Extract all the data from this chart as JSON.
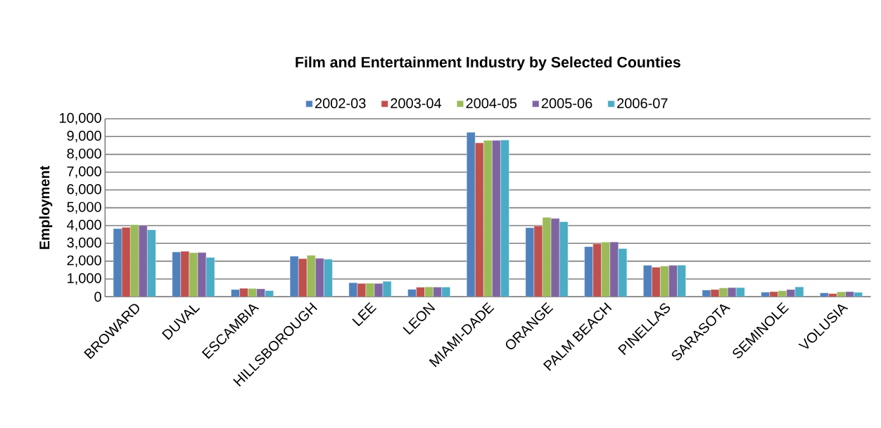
{
  "chart_data": {
    "type": "bar",
    "title": "Film and Entertainment Industry by Selected Counties",
    "ylabel": "Employment",
    "categories": [
      "BROWARD",
      "DUVAL",
      "ESCAMBIA",
      "HILLSBOROUGH",
      "LEE",
      "LEON",
      "MIAMI-DADE",
      "ORANGE",
      "PALM BEACH",
      "PINELLAS",
      "SARASOTA",
      "SEMINOLE",
      "VOLUSIA"
    ],
    "series": [
      {
        "name": "2002-03",
        "color": "#4f81bd",
        "values": [
          3830,
          2520,
          410,
          2280,
          790,
          420,
          9240,
          3880,
          2820,
          1770,
          380,
          260,
          220
        ]
      },
      {
        "name": "2003-04",
        "color": "#c0504d",
        "values": [
          3900,
          2560,
          480,
          2140,
          750,
          540,
          8650,
          3980,
          2980,
          1660,
          410,
          290,
          180
        ]
      },
      {
        "name": "2004-05",
        "color": "#9bbb59",
        "values": [
          4050,
          2480,
          470,
          2330,
          760,
          560,
          8790,
          4460,
          3070,
          1730,
          500,
          340,
          280
        ]
      },
      {
        "name": "2005-06",
        "color": "#8064a2",
        "values": [
          4010,
          2490,
          450,
          2160,
          750,
          550,
          8790,
          4400,
          3080,
          1770,
          520,
          410,
          290
        ]
      },
      {
        "name": "2006-07",
        "color": "#4bacc6",
        "values": [
          3760,
          2210,
          350,
          2110,
          870,
          550,
          8810,
          4220,
          2710,
          1780,
          520,
          560,
          250
        ]
      }
    ],
    "ylim": [
      0,
      10000
    ],
    "yticks": [
      {
        "value": 0,
        "label": "0"
      },
      {
        "value": 1000,
        "label": "1,000"
      },
      {
        "value": 2000,
        "label": "2,000"
      },
      {
        "value": 3000,
        "label": "3,000"
      },
      {
        "value": 4000,
        "label": "4,000"
      },
      {
        "value": 5000,
        "label": "5,000"
      },
      {
        "value": 6000,
        "label": "6,000"
      },
      {
        "value": 7000,
        "label": "7,000"
      },
      {
        "value": 8000,
        "label": "8,000"
      },
      {
        "value": 9000,
        "label": "9,000"
      },
      {
        "value": 10000,
        "label": "10,000"
      }
    ],
    "grid": "y",
    "legend": "top"
  }
}
